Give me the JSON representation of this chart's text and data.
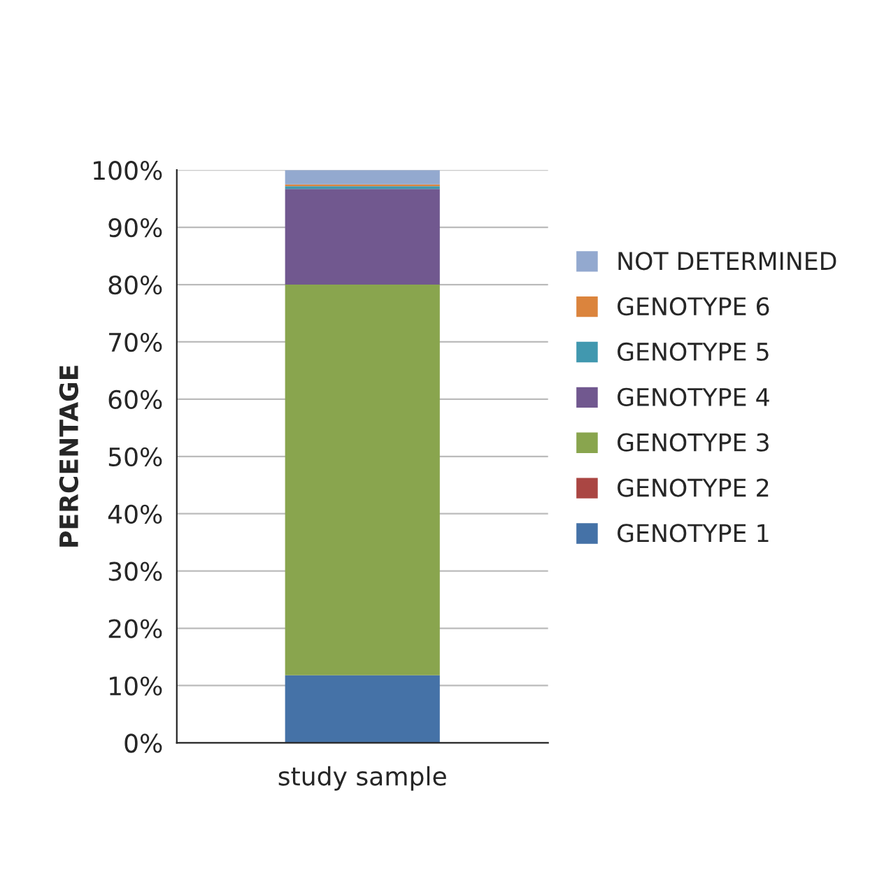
{
  "chart_data": {
    "type": "bar",
    "stacked": true,
    "ylabel": "PERCENTAGE",
    "categories": [
      "study sample"
    ],
    "series": [
      {
        "name": "GENOTYPE 1",
        "color": "#4572a7",
        "values": [
          11.8
        ]
      },
      {
        "name": "GENOTYPE 2",
        "color": "#aa4643",
        "values": [
          0
        ]
      },
      {
        "name": "GENOTYPE 3",
        "color": "#89a54e",
        "values": [
          68.2
        ]
      },
      {
        "name": "GENOTYPE 4",
        "color": "#71588f",
        "values": [
          16.7
        ]
      },
      {
        "name": "GENOTYPE 5",
        "color": "#4198af",
        "values": [
          0.5
        ]
      },
      {
        "name": "GENOTYPE 6",
        "color": "#db843d",
        "values": [
          0.3
        ]
      },
      {
        "name": "NOT DETERMINED",
        "color": "#93a9cf",
        "values": [
          2.5
        ]
      }
    ],
    "ylim": [
      0,
      100
    ],
    "yticks": [
      {
        "value": 0,
        "label": "0%"
      },
      {
        "value": 10,
        "label": "10%"
      },
      {
        "value": 20,
        "label": "20%"
      },
      {
        "value": 30,
        "label": "30%"
      },
      {
        "value": 40,
        "label": "40%"
      },
      {
        "value": 50,
        "label": "50%"
      },
      {
        "value": 60,
        "label": "60%"
      },
      {
        "value": 70,
        "label": "70%"
      },
      {
        "value": 80,
        "label": "80%"
      },
      {
        "value": 90,
        "label": "90%"
      },
      {
        "value": 100,
        "label": "100%"
      }
    ],
    "grid": "y",
    "legend": "right"
  }
}
